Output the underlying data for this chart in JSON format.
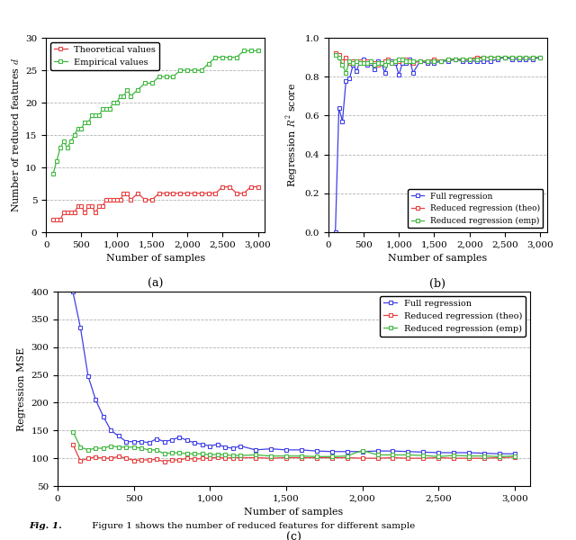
{
  "samples": [
    100,
    150,
    200,
    250,
    300,
    350,
    400,
    450,
    500,
    550,
    600,
    650,
    700,
    750,
    800,
    850,
    900,
    950,
    1000,
    1050,
    1100,
    1150,
    1200,
    1300,
    1400,
    1500,
    1600,
    1700,
    1800,
    1900,
    2000,
    2100,
    2200,
    2300,
    2400,
    2500,
    2600,
    2700,
    2800,
    2900,
    3000
  ],
  "a_theo": [
    2,
    2,
    2,
    3,
    3,
    3,
    3,
    4,
    4,
    3,
    4,
    4,
    3,
    4,
    4,
    5,
    5,
    5,
    5,
    5,
    6,
    6,
    5,
    6,
    5,
    5,
    6,
    6,
    6,
    6,
    6,
    6,
    6,
    6,
    6,
    7,
    7,
    6,
    6,
    7,
    7
  ],
  "a_emp": [
    9,
    11,
    13,
    14,
    13,
    14,
    15,
    16,
    16,
    17,
    17,
    18,
    18,
    18,
    19,
    19,
    19,
    20,
    20,
    21,
    21,
    22,
    21,
    22,
    23,
    23,
    24,
    24,
    24,
    25,
    25,
    25,
    25,
    26,
    27,
    27,
    27,
    27,
    28,
    28,
    28
  ],
  "b_full": [
    0.0,
    0.64,
    0.57,
    0.78,
    0.79,
    0.86,
    0.83,
    0.88,
    0.89,
    0.86,
    0.87,
    0.84,
    0.88,
    0.87,
    0.82,
    0.88,
    0.88,
    0.87,
    0.81,
    0.87,
    0.87,
    0.89,
    0.82,
    0.88,
    0.87,
    0.87,
    0.88,
    0.88,
    0.89,
    0.88,
    0.88,
    0.88,
    0.88,
    0.88,
    0.89,
    0.9,
    0.89,
    0.89,
    0.89,
    0.89,
    0.9
  ],
  "b_theo": [
    0.92,
    0.91,
    0.88,
    0.9,
    0.87,
    0.88,
    0.88,
    0.88,
    0.87,
    0.88,
    0.88,
    0.87,
    0.86,
    0.87,
    0.88,
    0.89,
    0.87,
    0.88,
    0.88,
    0.89,
    0.89,
    0.88,
    0.87,
    0.88,
    0.88,
    0.89,
    0.88,
    0.89,
    0.89,
    0.89,
    0.89,
    0.9,
    0.9,
    0.9,
    0.9,
    0.9,
    0.9,
    0.9,
    0.9,
    0.9,
    0.9
  ],
  "b_emp": [
    0.91,
    0.9,
    0.86,
    0.82,
    0.88,
    0.87,
    0.88,
    0.87,
    0.87,
    0.87,
    0.88,
    0.86,
    0.87,
    0.87,
    0.86,
    0.88,
    0.87,
    0.88,
    0.89,
    0.89,
    0.88,
    0.88,
    0.88,
    0.88,
    0.88,
    0.88,
    0.88,
    0.89,
    0.89,
    0.89,
    0.89,
    0.89,
    0.9,
    0.9,
    0.9,
    0.9,
    0.9,
    0.9,
    0.9,
    0.9,
    0.9
  ],
  "c_full": [
    400,
    335,
    248,
    205,
    175,
    150,
    140,
    130,
    130,
    130,
    128,
    135,
    130,
    133,
    138,
    132,
    128,
    125,
    122,
    125,
    120,
    118,
    122,
    115,
    117,
    115,
    115,
    113,
    112,
    112,
    112,
    113,
    113,
    112,
    111,
    110,
    110,
    110,
    109,
    108,
    108
  ],
  "c_theo": [
    125,
    95,
    100,
    102,
    100,
    100,
    103,
    100,
    96,
    97,
    97,
    98,
    94,
    97,
    97,
    100,
    98,
    100,
    100,
    102,
    100,
    101,
    101,
    101,
    100,
    101,
    101,
    101,
    101,
    101,
    100,
    100,
    101,
    100,
    100,
    101,
    100,
    100,
    100,
    101,
    102
  ],
  "c_emp": [
    148,
    120,
    115,
    118,
    118,
    122,
    120,
    120,
    120,
    118,
    115,
    115,
    108,
    110,
    110,
    108,
    108,
    108,
    106,
    107,
    106,
    105,
    105,
    106,
    104,
    104,
    104,
    103,
    103,
    104,
    114,
    106,
    106,
    106,
    105,
    103,
    105,
    104,
    104,
    103,
    104
  ],
  "color_red": "#e84040",
  "color_green": "#40b840",
  "color_blue": "#4040e8",
  "label_a": "(a)",
  "label_b": "(b)",
  "label_c": "(c)",
  "xlabel": "Number of samples",
  "ylabel_a": "Number of reduced features $d$",
  "ylabel_b": "Regression $R^2$ score",
  "ylabel_c": "Regression MSE",
  "ylim_a": [
    0,
    30
  ],
  "ylim_b": [
    0,
    1.0
  ],
  "ylim_c": [
    50,
    400
  ],
  "yticks_a": [
    0,
    5,
    10,
    15,
    20,
    25,
    30
  ],
  "yticks_b": [
    0.0,
    0.2,
    0.4,
    0.6,
    0.8,
    1.0
  ],
  "yticks_c": [
    50,
    100,
    150,
    200,
    250,
    300,
    350,
    400
  ],
  "xticks": [
    0,
    500,
    1000,
    1500,
    2000,
    2500,
    3000
  ],
  "xlim": [
    0,
    3100
  ],
  "caption_bold": "Fig. 1.",
  "caption_text": " Figure 1 shows the number of reduced features for different sample"
}
